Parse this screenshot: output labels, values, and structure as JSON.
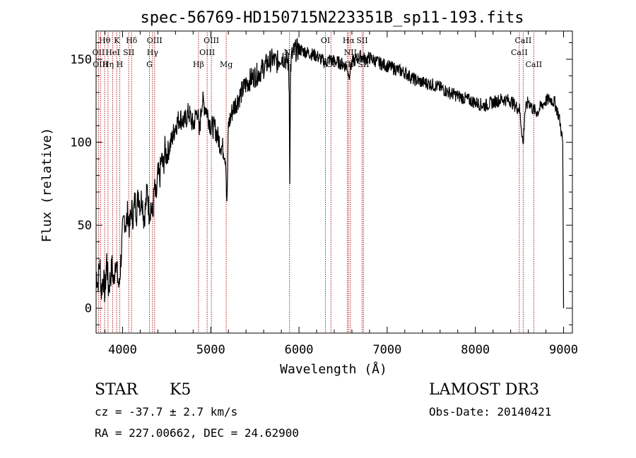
{
  "chart_data": {
    "type": "line",
    "title": "spec-56769-HD150715N223351B_sp11-193.fits",
    "xlabel": "Wavelength (Å)",
    "ylabel": "Flux (relative)",
    "xlim": [
      3700,
      9100
    ],
    "ylim": [
      -15,
      167
    ],
    "xticks": [
      4000,
      5000,
      6000,
      7000,
      8000,
      9000
    ],
    "yticks": [
      0,
      50,
      100,
      150
    ],
    "grid": false,
    "series": [
      {
        "name": "spectrum",
        "x": [
          3700,
          3720,
          3740,
          3760,
          3780,
          3800,
          3820,
          3840,
          3860,
          3880,
          3900,
          3920,
          3940,
          3960,
          3980,
          4000,
          4020,
          4040,
          4060,
          4080,
          4100,
          4120,
          4140,
          4160,
          4180,
          4200,
          4220,
          4240,
          4260,
          4280,
          4300,
          4320,
          4340,
          4360,
          4380,
          4400,
          4420,
          4440,
          4460,
          4480,
          4500,
          4550,
          4600,
          4650,
          4700,
          4750,
          4800,
          4850,
          4870,
          4900,
          4950,
          5000,
          5050,
          5100,
          5150,
          5170,
          5183,
          5200,
          5250,
          5300,
          5350,
          5400,
          5450,
          5500,
          5550,
          5600,
          5650,
          5700,
          5750,
          5800,
          5850,
          5880,
          5890,
          5896,
          5905,
          5920,
          5950,
          6000,
          6050,
          6100,
          6150,
          6200,
          6250,
          6300,
          6350,
          6400,
          6450,
          6500,
          6550,
          6563,
          6600,
          6650,
          6700,
          6750,
          6800,
          6900,
          7000,
          7100,
          7200,
          7300,
          7400,
          7500,
          7600,
          7700,
          7800,
          7900,
          8000,
          8100,
          8200,
          8300,
          8400,
          8450,
          8500,
          8520,
          8542,
          8560,
          8600,
          8650,
          8700,
          8750,
          8800,
          8850,
          8900,
          8950,
          8970,
          8990,
          9000
        ],
        "y": [
          22,
          15,
          28,
          10,
          20,
          8,
          30,
          12,
          18,
          25,
          14,
          32,
          20,
          12,
          28,
          45,
          55,
          50,
          58,
          48,
          60,
          55,
          65,
          58,
          70,
          62,
          68,
          55,
          60,
          72,
          58,
          62,
          55,
          72,
          65,
          80,
          78,
          90,
          85,
          95,
          92,
          100,
          110,
          115,
          112,
          118,
          110,
          120,
          105,
          125,
          120,
          110,
          108,
          100,
          95,
          90,
          60,
          110,
          120,
          125,
          130,
          135,
          138,
          140,
          142,
          145,
          148,
          150,
          148,
          152,
          150,
          148,
          130,
          80,
          145,
          152,
          155,
          156,
          155,
          154,
          153,
          152,
          150,
          148,
          150,
          149,
          148,
          147,
          145,
          140,
          148,
          150,
          152,
          150,
          151,
          148,
          146,
          144,
          142,
          138,
          136,
          135,
          133,
          130,
          128,
          126,
          124,
          122,
          124,
          126,
          125,
          122,
          120,
          110,
          98,
          118,
          125,
          120,
          118,
          122,
          125,
          126,
          124,
          115,
          108,
          100,
          0
        ]
      }
    ],
    "line_identifications": [
      {
        "label": "Hθ",
        "x": 3797,
        "row": 1
      },
      {
        "label": "OII",
        "x": 3727,
        "row": 2
      },
      {
        "label": "OIII",
        "x": 3750,
        "row": 3
      },
      {
        "label": "K",
        "x": 3934,
        "row": 1
      },
      {
        "label": "HeI",
        "x": 3888,
        "row": 2
      },
      {
        "label": "Hη",
        "x": 3835,
        "row": 3
      },
      {
        "label": "SII",
        "x": 4070,
        "row": 2
      },
      {
        "label": "H",
        "x": 3968,
        "row": 3
      },
      {
        "label": "Hδ",
        "x": 4102,
        "row": 1
      },
      {
        "label": "OIII",
        "x": 4363,
        "row": 1
      },
      {
        "label": "Hγ",
        "x": 4340,
        "row": 2
      },
      {
        "label": "G",
        "x": 4305,
        "row": 3
      },
      {
        "label": "OIII",
        "x": 5007,
        "row": 1
      },
      {
        "label": "OIII",
        "x": 4959,
        "row": 2
      },
      {
        "label": "Hβ",
        "x": 4861,
        "row": 3
      },
      {
        "label": "Mg",
        "x": 5175,
        "row": 3
      },
      {
        "label": "Na",
        "x": 5893,
        "row": 2
      },
      {
        "label": "OI",
        "x": 6300,
        "row": 1
      },
      {
        "label": "OI",
        "x": 6363,
        "row": 3
      },
      {
        "label": "Hα",
        "x": 6563,
        "row": 1
      },
      {
        "label": "NII",
        "x": 6548,
        "row": 3
      },
      {
        "label": "NII",
        "x": 6583,
        "row": 2
      },
      {
        "label": "SII",
        "x": 6716,
        "row": 1
      },
      {
        "label": "SII",
        "x": 6731,
        "row": 3
      },
      {
        "label": "CaII",
        "x": 8498,
        "row": 2
      },
      {
        "label": "CaII",
        "x": 8542,
        "row": 1
      },
      {
        "label": "CaII",
        "x": 8662,
        "row": 3
      }
    ]
  },
  "info": {
    "object_class": "STAR",
    "subclass": "K5",
    "redshift": "cz = -37.7 ± 2.7 km/s",
    "coords": "RA = 227.00662, DEC =  24.62900",
    "survey": "LAMOST DR3",
    "obs_date": "Obs-Date: 20140421"
  }
}
